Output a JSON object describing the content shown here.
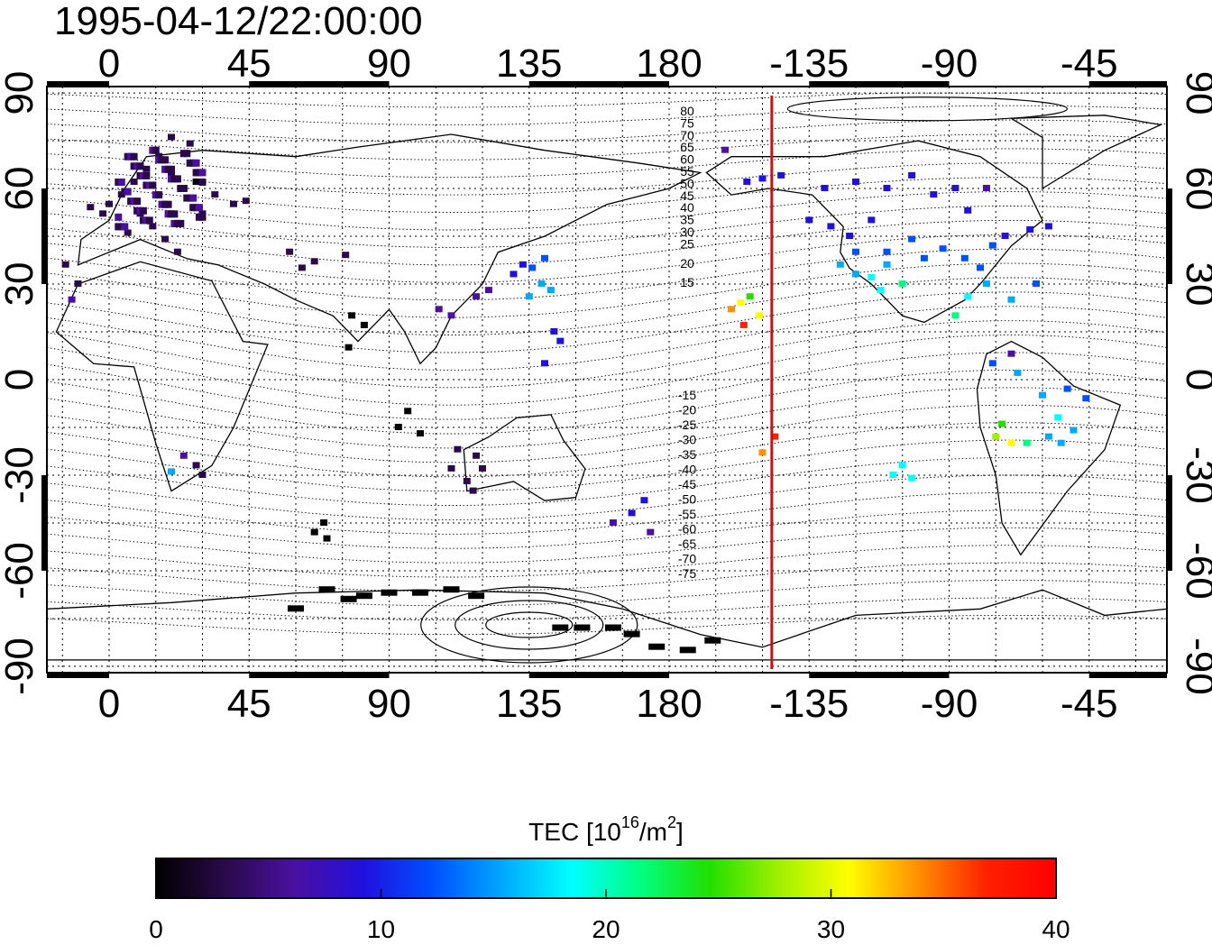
{
  "timestamp": "1995-04-12/22:00:00",
  "map": {
    "x_ticks_top": [
      "0",
      "45",
      "90",
      "135",
      "180",
      "-135",
      "-90",
      "-45"
    ],
    "x_ticks_bottom": [
      "0",
      "45",
      "90",
      "135",
      "180",
      "-135",
      "-90",
      "-45"
    ],
    "y_ticks_left": [
      "90",
      "60",
      "30",
      "0",
      "-30",
      "-60",
      "-90"
    ],
    "y_ticks_right": [
      "90",
      "60",
      "30",
      "0",
      "-30",
      "-60",
      "-90"
    ],
    "lon_range": [
      -20,
      340
    ],
    "lat_range": [
      -92,
      92
    ],
    "terminator_lon": 213,
    "terminator_color": "#cc1111",
    "magnetic_lat_labels_north": [
      "80",
      "75",
      "70",
      "65",
      "60",
      "55",
      "50",
      "45",
      "40",
      "35",
      "30",
      "25",
      "20",
      "15"
    ],
    "magnetic_lat_labels_south": [
      "-15",
      "-20",
      "-25",
      "-30",
      "-35",
      "-40",
      "-45",
      "-50",
      "-55",
      "-60",
      "-65",
      "-70",
      "-75"
    ]
  },
  "colorbar": {
    "title_prefix": "TEC  [10",
    "title_exp1": "16",
    "title_mid": "/m",
    "title_exp2": "2",
    "title_suffix": "]",
    "ticks": [
      "0",
      "10",
      "20",
      "30",
      "40"
    ],
    "min": 0,
    "max": 40,
    "colors": [
      "#000000",
      "#2a0a4a",
      "#4a10a0",
      "#2010e0",
      "#0050ff",
      "#00a8ff",
      "#00ffff",
      "#00ff80",
      "#20e000",
      "#a0f000",
      "#ffff00",
      "#ff9000",
      "#ff2000",
      "#ff0000"
    ]
  },
  "tec_points": [
    {
      "region": "europe",
      "lon": 0,
      "lat": 55,
      "tec": 3
    },
    {
      "region": "europe",
      "lon": 4,
      "lat": 58,
      "tec": 3
    },
    {
      "region": "europe",
      "lon": 8,
      "lat": 62,
      "tec": 4
    },
    {
      "region": "europe",
      "lon": 12,
      "lat": 66,
      "tec": 4
    },
    {
      "region": "europe",
      "lon": 16,
      "lat": 70,
      "tec": 4
    },
    {
      "region": "europe",
      "lon": 20,
      "lat": 64,
      "tec": 3
    },
    {
      "region": "europe",
      "lon": 24,
      "lat": 60,
      "tec": 2
    },
    {
      "region": "europe",
      "lon": 28,
      "lat": 62,
      "tec": 1
    },
    {
      "region": "europe",
      "lon": 10,
      "lat": 52,
      "tec": 4
    },
    {
      "region": "europe",
      "lon": 14,
      "lat": 48,
      "tec": 4
    },
    {
      "region": "europe",
      "lon": 6,
      "lat": 46,
      "tec": 4
    },
    {
      "region": "europe",
      "lon": 18,
      "lat": 44,
      "tec": 4
    },
    {
      "region": "europe",
      "lon": 22,
      "lat": 40,
      "tec": 4
    },
    {
      "region": "europe",
      "lon": -2,
      "lat": 52,
      "tec": 2
    },
    {
      "region": "europe",
      "lon": -6,
      "lat": 54,
      "tec": 2
    },
    {
      "region": "europe",
      "lon": -10,
      "lat": 30,
      "tec": 4
    },
    {
      "region": "europe",
      "lon": -12,
      "lat": 25,
      "tec": 5
    },
    {
      "region": "europe",
      "lon": -14,
      "lat": 36,
      "tec": 4
    },
    {
      "region": "europe",
      "lon": 30,
      "lat": 52,
      "tec": 4
    },
    {
      "region": "europe",
      "lon": 34,
      "lat": 58,
      "tec": 3
    },
    {
      "region": "europe",
      "lon": 40,
      "lat": 55,
      "tec": 2
    },
    {
      "region": "europe",
      "lon": 44,
      "lat": 56,
      "tec": 2
    },
    {
      "region": "europe",
      "lon": 26,
      "lat": 74,
      "tec": 4
    },
    {
      "region": "europe",
      "lon": 20,
      "lat": 76,
      "tec": 4
    },
    {
      "region": "asia",
      "lon": 58,
      "lat": 40,
      "tec": 4
    },
    {
      "region": "asia",
      "lon": 62,
      "lat": 35,
      "tec": 4
    },
    {
      "region": "asia",
      "lon": 66,
      "lat": 37,
      "tec": 4
    },
    {
      "region": "asia",
      "lon": 76,
      "lat": 39,
      "tec": 4
    },
    {
      "region": "asia",
      "lon": 78,
      "lat": 20,
      "tec": 1
    },
    {
      "region": "asia",
      "lon": 82,
      "lat": 17,
      "tec": 1
    },
    {
      "region": "asia",
      "lon": 77,
      "lat": 10,
      "tec": 1
    },
    {
      "region": "asia",
      "lon": 96,
      "lat": -10,
      "tec": 1
    },
    {
      "region": "asia",
      "lon": 100,
      "lat": -17,
      "tec": 1
    },
    {
      "region": "asia",
      "lon": 93,
      "lat": -15,
      "tec": 1
    },
    {
      "region": "japan",
      "lon": 130,
      "lat": 33,
      "tec": 8
    },
    {
      "region": "japan",
      "lon": 133,
      "lat": 36,
      "tec": 9
    },
    {
      "region": "japan",
      "lon": 136,
      "lat": 35,
      "tec": 11
    },
    {
      "region": "japan",
      "lon": 140,
      "lat": 38,
      "tec": 11
    },
    {
      "region": "japan",
      "lon": 139,
      "lat": 30,
      "tec": 14
    },
    {
      "region": "japan",
      "lon": 142,
      "lat": 28,
      "tec": 15
    },
    {
      "region": "japan",
      "lon": 135,
      "lat": 26,
      "tec": 14
    },
    {
      "region": "japan",
      "lon": 143,
      "lat": 15,
      "tec": 10
    },
    {
      "region": "japan",
      "lon": 145,
      "lat": 12,
      "tec": 9
    },
    {
      "region": "japan",
      "lon": 140,
      "lat": 5,
      "tec": 9
    },
    {
      "region": "japan",
      "lon": 118,
      "lat": 26,
      "tec": 6
    },
    {
      "region": "japan",
      "lon": 122,
      "lat": 28,
      "tec": 6
    },
    {
      "region": "japan",
      "lon": 110,
      "lat": 20,
      "tec": 5
    },
    {
      "region": "japan",
      "lon": 106,
      "lat": 22,
      "tec": 5
    },
    {
      "region": "australia",
      "lon": 110,
      "lat": -28,
      "tec": 4
    },
    {
      "region": "australia",
      "lon": 115,
      "lat": -32,
      "tec": 4
    },
    {
      "region": "australia",
      "lon": 118,
      "lat": -24,
      "tec": 4
    },
    {
      "region": "australia",
      "lon": 112,
      "lat": -22,
      "tec": 4
    },
    {
      "region": "australia",
      "lon": 117,
      "lat": -35,
      "tec": 4
    },
    {
      "region": "australia",
      "lon": 120,
      "lat": -28,
      "tec": 4
    },
    {
      "region": "nz",
      "lon": 162,
      "lat": -45,
      "tec": 5
    },
    {
      "region": "nz",
      "lon": 168,
      "lat": -42,
      "tec": 9
    },
    {
      "region": "nz",
      "lon": 172,
      "lat": -38,
      "tec": 8
    },
    {
      "region": "nz",
      "lon": 174,
      "lat": -48,
      "tec": 6
    },
    {
      "region": "safrica",
      "lon": 20,
      "lat": -29,
      "tec": 16
    },
    {
      "region": "safrica",
      "lon": 24,
      "lat": -24,
      "tec": 5
    },
    {
      "region": "safrica",
      "lon": 28,
      "lat": -27,
      "tec": 4
    },
    {
      "region": "safrica",
      "lon": 30,
      "lat": -30,
      "tec": 4
    },
    {
      "region": "indian",
      "lon": 66,
      "lat": -48,
      "tec": 1
    },
    {
      "region": "indian",
      "lon": 70,
      "lat": -50,
      "tec": 1
    },
    {
      "region": "indian",
      "lon": 69,
      "lat": -45,
      "tec": 1
    },
    {
      "region": "antarctica",
      "lon": 70,
      "lat": -66,
      "tec": 0
    },
    {
      "region": "antarctica",
      "lon": 77,
      "lat": -69,
      "tec": 0
    },
    {
      "region": "antarctica",
      "lon": 82,
      "lat": -68,
      "tec": 0
    },
    {
      "region": "antarctica",
      "lon": 90,
      "lat": -67,
      "tec": 0
    },
    {
      "region": "antarctica",
      "lon": 100,
      "lat": -67,
      "tec": 0
    },
    {
      "region": "antarctica",
      "lon": 110,
      "lat": -66,
      "tec": 0
    },
    {
      "region": "antarctica",
      "lon": 118,
      "lat": -68,
      "tec": 0
    },
    {
      "region": "antarctica",
      "lon": 60,
      "lat": -72,
      "tec": 0
    },
    {
      "region": "antarctica",
      "lon": 145,
      "lat": -78,
      "tec": 0
    },
    {
      "region": "antarctica",
      "lon": 152,
      "lat": -78,
      "tec": 0
    },
    {
      "region": "antarctica",
      "lon": 162,
      "lat": -78,
      "tec": 0
    },
    {
      "region": "antarctica",
      "lon": 168,
      "lat": -80,
      "tec": 0
    },
    {
      "region": "antarctica",
      "lon": 176,
      "lat": -84,
      "tec": 0
    },
    {
      "region": "antarctica",
      "lon": 186,
      "lat": -85,
      "tec": 0
    },
    {
      "region": "antarctica",
      "lon": 194,
      "lat": -82,
      "tec": 0
    },
    {
      "region": "hawaii",
      "lon": 200,
      "lat": 22,
      "tec": 35
    },
    {
      "region": "hawaii",
      "lon": 203,
      "lat": 24,
      "tec": 31
    },
    {
      "region": "hawaii",
      "lon": 206,
      "lat": 26,
      "tec": 24
    },
    {
      "region": "hawaii",
      "lon": 209,
      "lat": 20,
      "tec": 30
    },
    {
      "region": "hawaii",
      "lon": 204,
      "lat": 17,
      "tec": 38
    },
    {
      "region": "alaska",
      "lon": 198,
      "lat": 72,
      "tec": 5
    },
    {
      "region": "alaska",
      "lon": 210,
      "lat": 63,
      "tec": 9
    },
    {
      "region": "alaska",
      "lon": 216,
      "lat": 64,
      "tec": 9
    },
    {
      "region": "alaska",
      "lon": 205,
      "lat": 62,
      "tec": 9
    },
    {
      "region": "pacific_s",
      "lon": 210,
      "lat": -23,
      "tec": 34
    },
    {
      "region": "pacific_s",
      "lon": 214,
      "lat": -18,
      "tec": 38
    },
    {
      "region": "namerica",
      "lon": 225,
      "lat": 50,
      "tec": 10
    },
    {
      "region": "namerica",
      "lon": 232,
      "lat": 48,
      "tec": 10
    },
    {
      "region": "namerica",
      "lon": 238,
      "lat": 45,
      "tec": 10
    },
    {
      "region": "namerica",
      "lon": 245,
      "lat": 50,
      "tec": 10
    },
    {
      "region": "namerica",
      "lon": 240,
      "lat": 40,
      "tec": 11
    },
    {
      "region": "namerica",
      "lon": 235,
      "lat": 36,
      "tec": 14
    },
    {
      "region": "namerica",
      "lon": 240,
      "lat": 33,
      "tec": 16
    },
    {
      "region": "namerica",
      "lon": 245,
      "lat": 32,
      "tec": 18
    },
    {
      "region": "namerica",
      "lon": 250,
      "lat": 36,
      "tec": 14
    },
    {
      "region": "namerica",
      "lon": 255,
      "lat": 30,
      "tec": 20
    },
    {
      "region": "namerica",
      "lon": 248,
      "lat": 28,
      "tec": 18
    },
    {
      "region": "namerica",
      "lon": 250,
      "lat": 40,
      "tec": 13
    },
    {
      "region": "namerica",
      "lon": 258,
      "lat": 44,
      "tec": 12
    },
    {
      "region": "namerica",
      "lon": 262,
      "lat": 38,
      "tec": 13
    },
    {
      "region": "namerica",
      "lon": 268,
      "lat": 41,
      "tec": 12
    },
    {
      "region": "namerica",
      "lon": 275,
      "lat": 38,
      "tec": 12
    },
    {
      "region": "namerica",
      "lon": 280,
      "lat": 35,
      "tec": 12
    },
    {
      "region": "namerica",
      "lon": 284,
      "lat": 42,
      "tec": 11
    },
    {
      "region": "namerica",
      "lon": 288,
      "lat": 45,
      "tec": 10
    },
    {
      "region": "namerica",
      "lon": 282,
      "lat": 30,
      "tec": 14
    },
    {
      "region": "namerica",
      "lon": 276,
      "lat": 26,
      "tec": 17
    },
    {
      "region": "namerica",
      "lon": 272,
      "lat": 20,
      "tec": 22
    },
    {
      "region": "namerica",
      "lon": 290,
      "lat": 25,
      "tec": 14
    },
    {
      "region": "namerica",
      "lon": 298,
      "lat": 30,
      "tec": 12
    },
    {
      "region": "namerica",
      "lon": 296,
      "lat": 47,
      "tec": 10
    },
    {
      "region": "namerica",
      "lon": 302,
      "lat": 48,
      "tec": 10
    },
    {
      "region": "canada",
      "lon": 230,
      "lat": 60,
      "tec": 8
    },
    {
      "region": "canada",
      "lon": 240,
      "lat": 62,
      "tec": 8
    },
    {
      "region": "canada",
      "lon": 250,
      "lat": 60,
      "tec": 8
    },
    {
      "region": "canada",
      "lon": 258,
      "lat": 64,
      "tec": 8
    },
    {
      "region": "canada",
      "lon": 265,
      "lat": 58,
      "tec": 8
    },
    {
      "region": "canada",
      "lon": 272,
      "lat": 60,
      "tec": 8
    },
    {
      "region": "canada",
      "lon": 276,
      "lat": 53,
      "tec": 8
    },
    {
      "region": "canada",
      "lon": 282,
      "lat": 60,
      "tec": 5
    },
    {
      "region": "samerica",
      "lon": 290,
      "lat": 8,
      "tec": 5
    },
    {
      "region": "samerica",
      "lon": 284,
      "lat": 5,
      "tec": 12
    },
    {
      "region": "samerica",
      "lon": 292,
      "lat": 2,
      "tec": 14
    },
    {
      "region": "samerica",
      "lon": 300,
      "lat": -5,
      "tec": 14
    },
    {
      "region": "samerica",
      "lon": 308,
      "lat": -3,
      "tec": 12
    },
    {
      "region": "samerica",
      "lon": 314,
      "lat": -6,
      "tec": 12
    },
    {
      "region": "samerica",
      "lon": 305,
      "lat": -12,
      "tec": 17
    },
    {
      "region": "samerica",
      "lon": 310,
      "lat": -16,
      "tec": 15
    },
    {
      "region": "samerica",
      "lon": 285,
      "lat": -18,
      "tec": 28
    },
    {
      "region": "samerica",
      "lon": 290,
      "lat": -20,
      "tec": 30
    },
    {
      "region": "samerica",
      "lon": 295,
      "lat": -20,
      "tec": 23
    },
    {
      "region": "samerica",
      "lon": 302,
      "lat": -18,
      "tec": 16
    },
    {
      "region": "samerica",
      "lon": 306,
      "lat": -20,
      "tec": 15
    },
    {
      "region": "samerica",
      "lon": 287,
      "lat": -14,
      "tec": 25
    },
    {
      "region": "samerica",
      "lon": 255,
      "lat": -27,
      "tec": 19
    },
    {
      "region": "samerica",
      "lon": 258,
      "lat": -31,
      "tec": 18
    },
    {
      "region": "samerica",
      "lon": 252,
      "lat": -30,
      "tec": 17
    }
  ]
}
